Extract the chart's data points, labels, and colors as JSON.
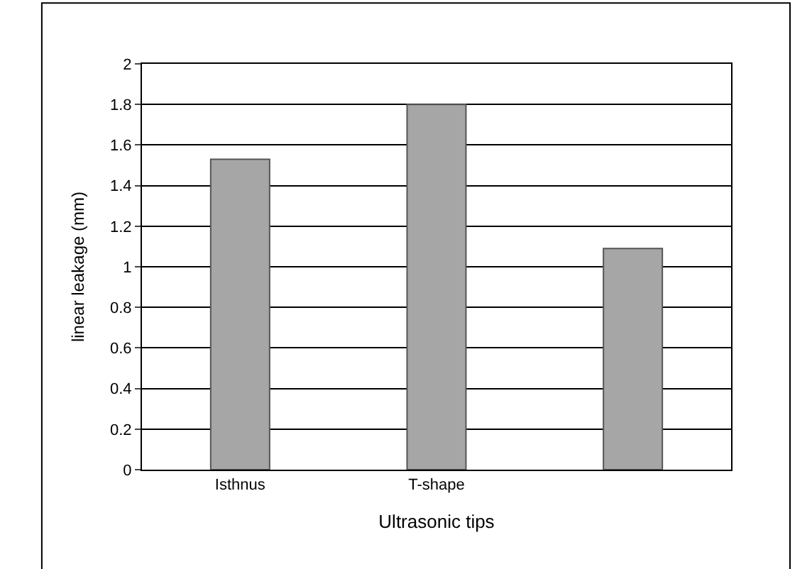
{
  "chart_data": {
    "type": "bar",
    "xlabel": "Ultrasonic tips",
    "ylabel": "linear leakage (mm)",
    "categories": [
      "Isthnus",
      "T-shape",
      null
    ],
    "values": [
      1.53,
      1.8,
      1.09
    ],
    "color": "#a6a6a6",
    "ylim": [
      0,
      2
    ],
    "yticks": [
      0,
      0.2,
      0.4,
      0.6,
      0.8,
      1,
      1.2,
      1.4,
      1.6,
      1.8,
      2
    ],
    "grid": "y"
  }
}
